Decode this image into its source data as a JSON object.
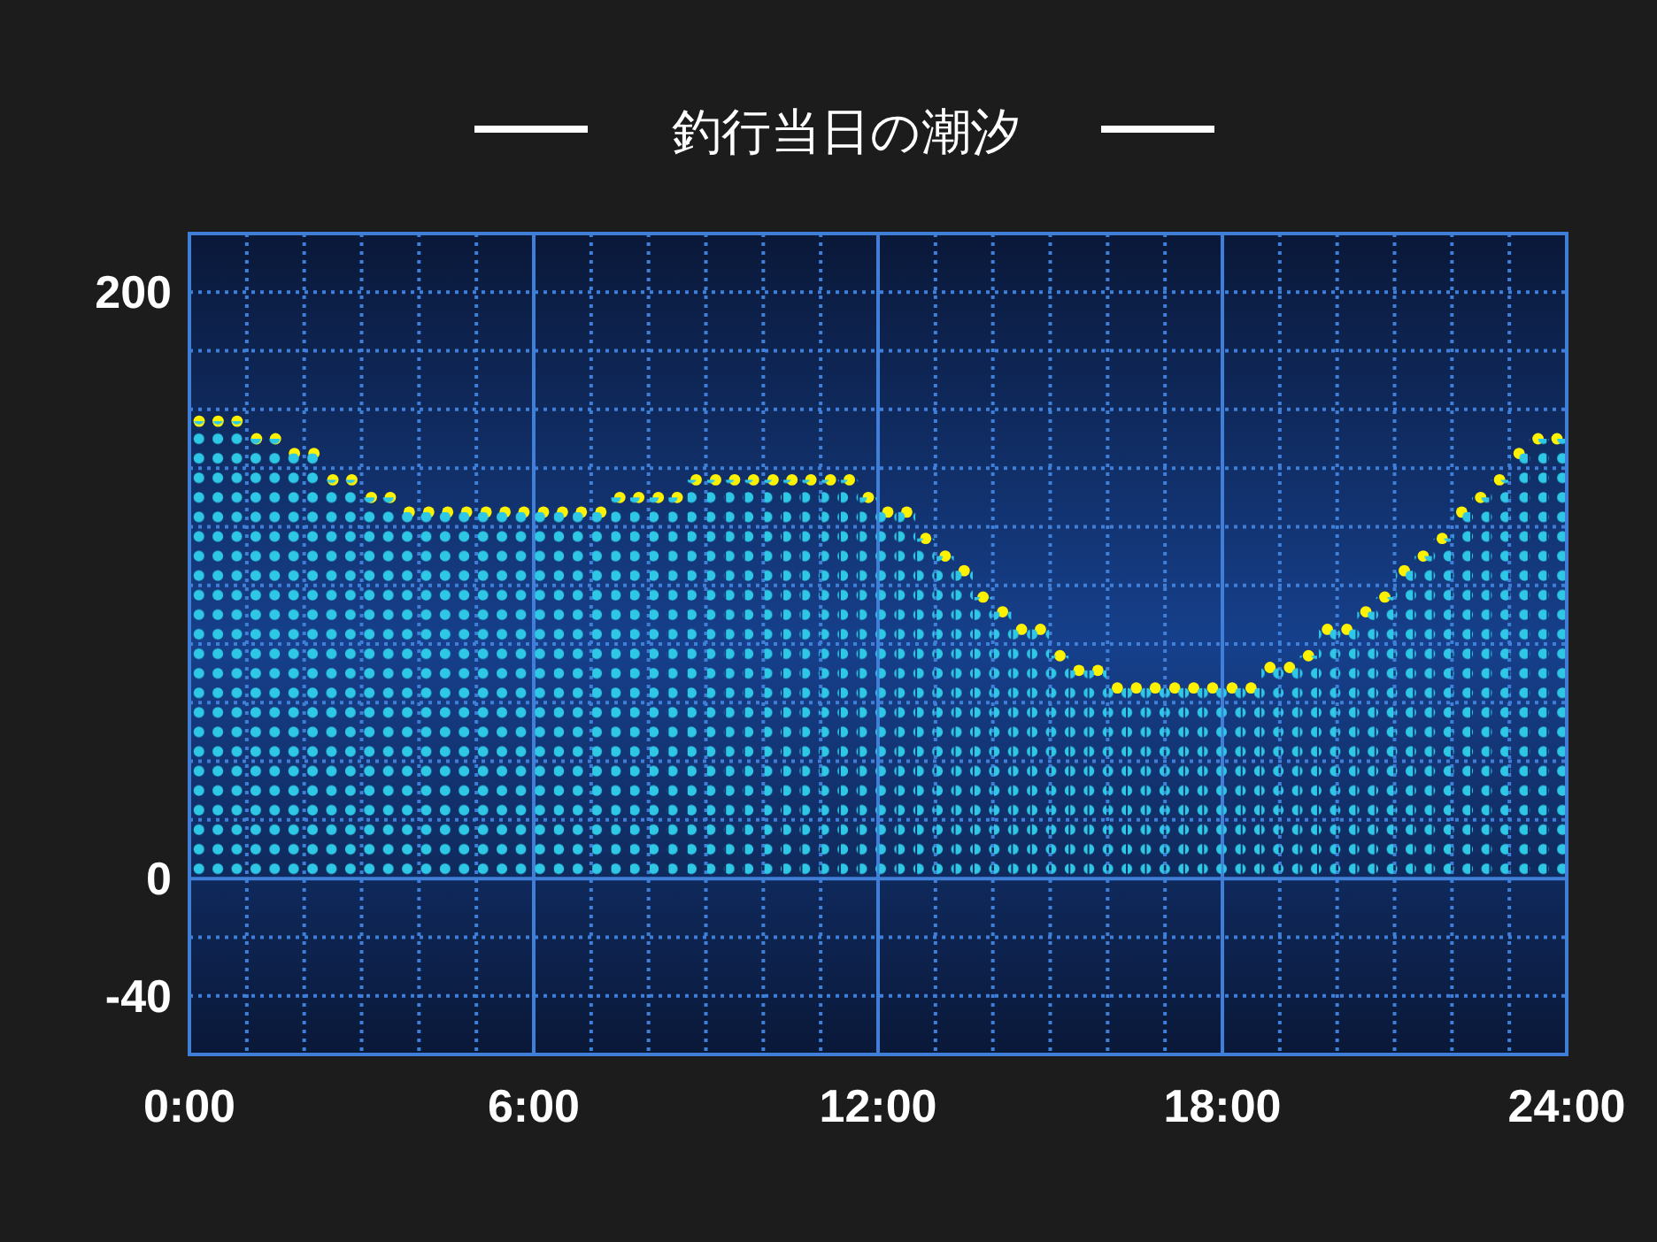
{
  "chart_data": {
    "type": "bar",
    "title": "釣行当日の潮汐",
    "x": [
      0.17,
      0.5,
      0.83,
      1.17,
      1.5,
      1.83,
      2.17,
      2.5,
      2.83,
      3.17,
      3.5,
      3.83,
      4.17,
      4.5,
      4.83,
      5.17,
      5.5,
      5.83,
      6.17,
      6.5,
      6.83,
      7.17,
      7.5,
      7.83,
      8.17,
      8.5,
      8.83,
      9.17,
      9.5,
      9.83,
      10.17,
      10.5,
      10.83,
      11.17,
      11.5,
      11.83,
      12.17,
      12.5,
      12.83,
      13.17,
      13.5,
      13.83,
      14.17,
      14.5,
      14.83,
      15.17,
      15.5,
      15.83,
      16.17,
      16.5,
      16.83,
      17.17,
      17.5,
      17.83,
      18.17,
      18.5,
      18.83,
      19.17,
      19.5,
      19.83,
      20.17,
      20.5,
      20.83,
      21.17,
      21.5,
      21.83,
      22.17,
      22.5,
      22.83,
      23.17,
      23.5,
      23.83
    ],
    "series": [
      {
        "color": "#2ec8e6",
        "values": [
          156,
          156,
          156,
          150,
          150,
          145,
          145,
          136,
          136,
          130,
          130,
          125,
          125,
          125,
          125,
          125,
          125,
          125,
          125,
          125,
          125,
          125,
          130,
          130,
          130,
          130,
          136,
          136,
          136,
          136,
          136,
          136,
          136,
          136,
          136,
          130,
          125,
          125,
          116,
          110,
          105,
          96,
          91,
          85,
          85,
          76,
          71,
          71,
          65,
          65,
          65,
          65,
          65,
          65,
          65,
          65,
          72,
          72,
          76,
          85,
          85,
          91,
          96,
          105,
          110,
          116,
          125,
          130,
          136,
          145,
          150,
          150
        ]
      },
      {
        "type": "scatter",
        "color": "#fff200",
        "marker": "circle",
        "values": [
          156,
          156,
          156,
          150,
          150,
          145,
          145,
          136,
          136,
          130,
          130,
          125,
          125,
          125,
          125,
          125,
          125,
          125,
          125,
          125,
          125,
          125,
          130,
          130,
          130,
          130,
          136,
          136,
          136,
          136,
          136,
          136,
          136,
          136,
          136,
          130,
          125,
          125,
          116,
          110,
          105,
          96,
          91,
          85,
          85,
          76,
          71,
          71,
          65,
          65,
          65,
          65,
          65,
          65,
          65,
          65,
          72,
          72,
          76,
          85,
          85,
          91,
          96,
          105,
          110,
          116,
          125,
          130,
          136,
          145,
          150,
          150
        ]
      }
    ],
    "xlim": [
      0,
      24
    ],
    "xticks": [
      {
        "value": 0,
        "label": "0:00"
      },
      {
        "value": 1,
        "label": null
      },
      {
        "value": 2,
        "label": null
      },
      {
        "value": 3,
        "label": null
      },
      {
        "value": 4,
        "label": null
      },
      {
        "value": 5,
        "label": null
      },
      {
        "value": 6,
        "label": "6:00"
      },
      {
        "value": 7,
        "label": null
      },
      {
        "value": 8,
        "label": null
      },
      {
        "value": 9,
        "label": null
      },
      {
        "value": 10,
        "label": null
      },
      {
        "value": 11,
        "label": null
      },
      {
        "value": 12,
        "label": "12:00"
      },
      {
        "value": 13,
        "label": null
      },
      {
        "value": 14,
        "label": null
      },
      {
        "value": 15,
        "label": null
      },
      {
        "value": 16,
        "label": null
      },
      {
        "value": 17,
        "label": null
      },
      {
        "value": 18,
        "label": "18:00"
      },
      {
        "value": 19,
        "label": null
      },
      {
        "value": 20,
        "label": null
      },
      {
        "value": 21,
        "label": null
      },
      {
        "value": 22,
        "label": null
      },
      {
        "value": 23,
        "label": null
      },
      {
        "value": 24,
        "label": "24:00"
      }
    ],
    "ylim": [
      -60,
      220
    ],
    "yticks": [
      -40,
      {
        "value": -20,
        "label": null
      },
      0,
      {
        "value": 20,
        "label": null
      },
      {
        "value": 40,
        "label": null
      },
      {
        "value": 60,
        "label": null
      },
      {
        "value": 80,
        "label": null
      },
      {
        "value": 100,
        "label": null
      },
      {
        "value": 120,
        "label": null
      },
      {
        "value": 140,
        "label": null
      },
      {
        "value": 160,
        "label": null
      },
      {
        "value": 180,
        "label": null
      },
      200
    ],
    "grid": true
  }
}
